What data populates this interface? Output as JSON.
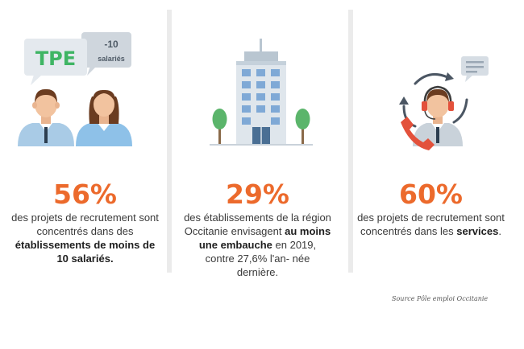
{
  "panels": [
    {
      "bubble_tpe": "TPE",
      "bubble_small_num": "-10",
      "bubble_small_text": "salariés",
      "percent": "56%",
      "desc_plain": "des projets de recrutement sont concentrés dans des",
      "desc_bold": "établissements de moins de 10 salariés."
    },
    {
      "percent": "29%",
      "desc_plain": "des établissements de la région Occitanie envisagent",
      "desc_bold": "au moins une embauche",
      "desc_after": "en 2019, contre 27,6% l'an- née dernière."
    },
    {
      "percent": "60%",
      "desc_plain": "des projets de recrutement sont concentrés dans les",
      "desc_bold": "services",
      "desc_after": "."
    }
  ],
  "source": "Source Pôle emploi Occitanie",
  "colors": {
    "accent": "#ec6a2c",
    "green": "#3fb564",
    "divider": "#ebebeb"
  },
  "icons": [
    "speech-bubble-icon",
    "businessman-icon",
    "businesswoman-icon",
    "office-building-icon",
    "tree-icon",
    "call-center-agent-icon",
    "phone-icon",
    "refresh-arrows-icon",
    "chat-bubble-icon"
  ]
}
